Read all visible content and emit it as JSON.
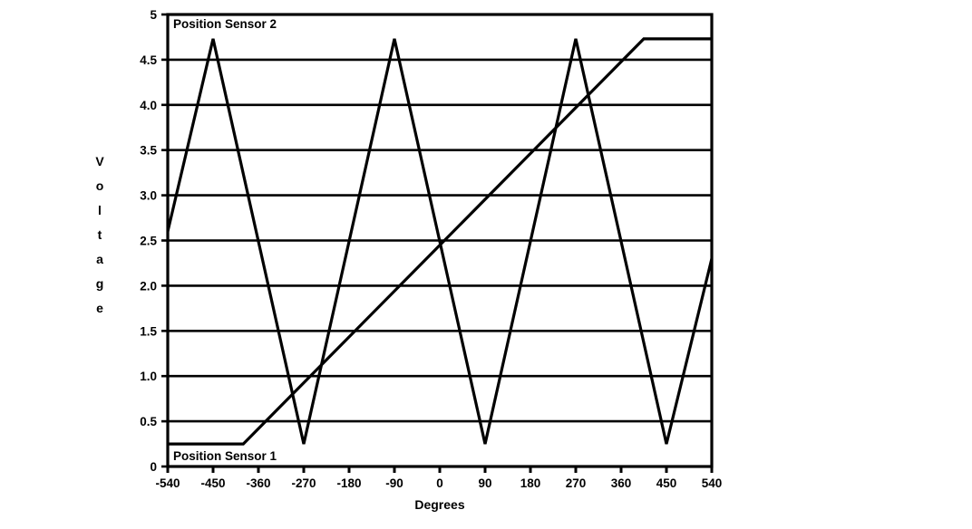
{
  "page": {
    "background_color": "#ffffff",
    "ink_color": "#000000"
  },
  "chart_data": {
    "type": "line",
    "title": "",
    "xlabel": "Degrees",
    "ylabel": "Voltage",
    "xlim": [
      -540,
      540
    ],
    "ylim": [
      0,
      5
    ],
    "grid": "horizontal",
    "legend_position": "in-plot-annotations",
    "x_ticks": [
      -540,
      -450,
      -360,
      -270,
      -180,
      -90,
      0,
      90,
      180,
      270,
      360,
      450,
      540
    ],
    "x_tick_labels": [
      "-540",
      "-450",
      "-360",
      "-270",
      "-180",
      "-90",
      "0",
      "90",
      "180",
      "270",
      "360",
      "450",
      "540"
    ],
    "y_ticks": [
      0,
      0.5,
      1.0,
      1.5,
      2.0,
      2.5,
      3.0,
      3.5,
      4.0,
      4.5,
      5
    ],
    "y_tick_labels": [
      "0",
      "0.5",
      "1.0",
      "1.5",
      "2.0",
      "2.5",
      "3.0",
      "3.5",
      "4.0",
      "4.5",
      "5"
    ],
    "series": [
      {
        "name": "Position Sensor 1",
        "shape": "ramp-with-saturation",
        "points": [
          [
            -540,
            0.25
          ],
          [
            -390,
            0.25
          ],
          [
            405,
            4.73
          ],
          [
            540,
            4.73
          ]
        ]
      },
      {
        "name": "Position Sensor 2",
        "shape": "triangle-wave",
        "points": [
          [
            -540,
            2.6
          ],
          [
            -450,
            4.73
          ],
          [
            -270,
            0.25
          ],
          [
            -90,
            4.73
          ],
          [
            90,
            0.25
          ],
          [
            270,
            4.73
          ],
          [
            450,
            0.25
          ],
          [
            540,
            2.3
          ]
        ]
      }
    ],
    "annotations": [
      {
        "text": "Position Sensor 2",
        "position": "top-left-inside-plot"
      },
      {
        "text": "Position Sensor 1",
        "position": "bottom-left-inside-plot"
      }
    ]
  }
}
